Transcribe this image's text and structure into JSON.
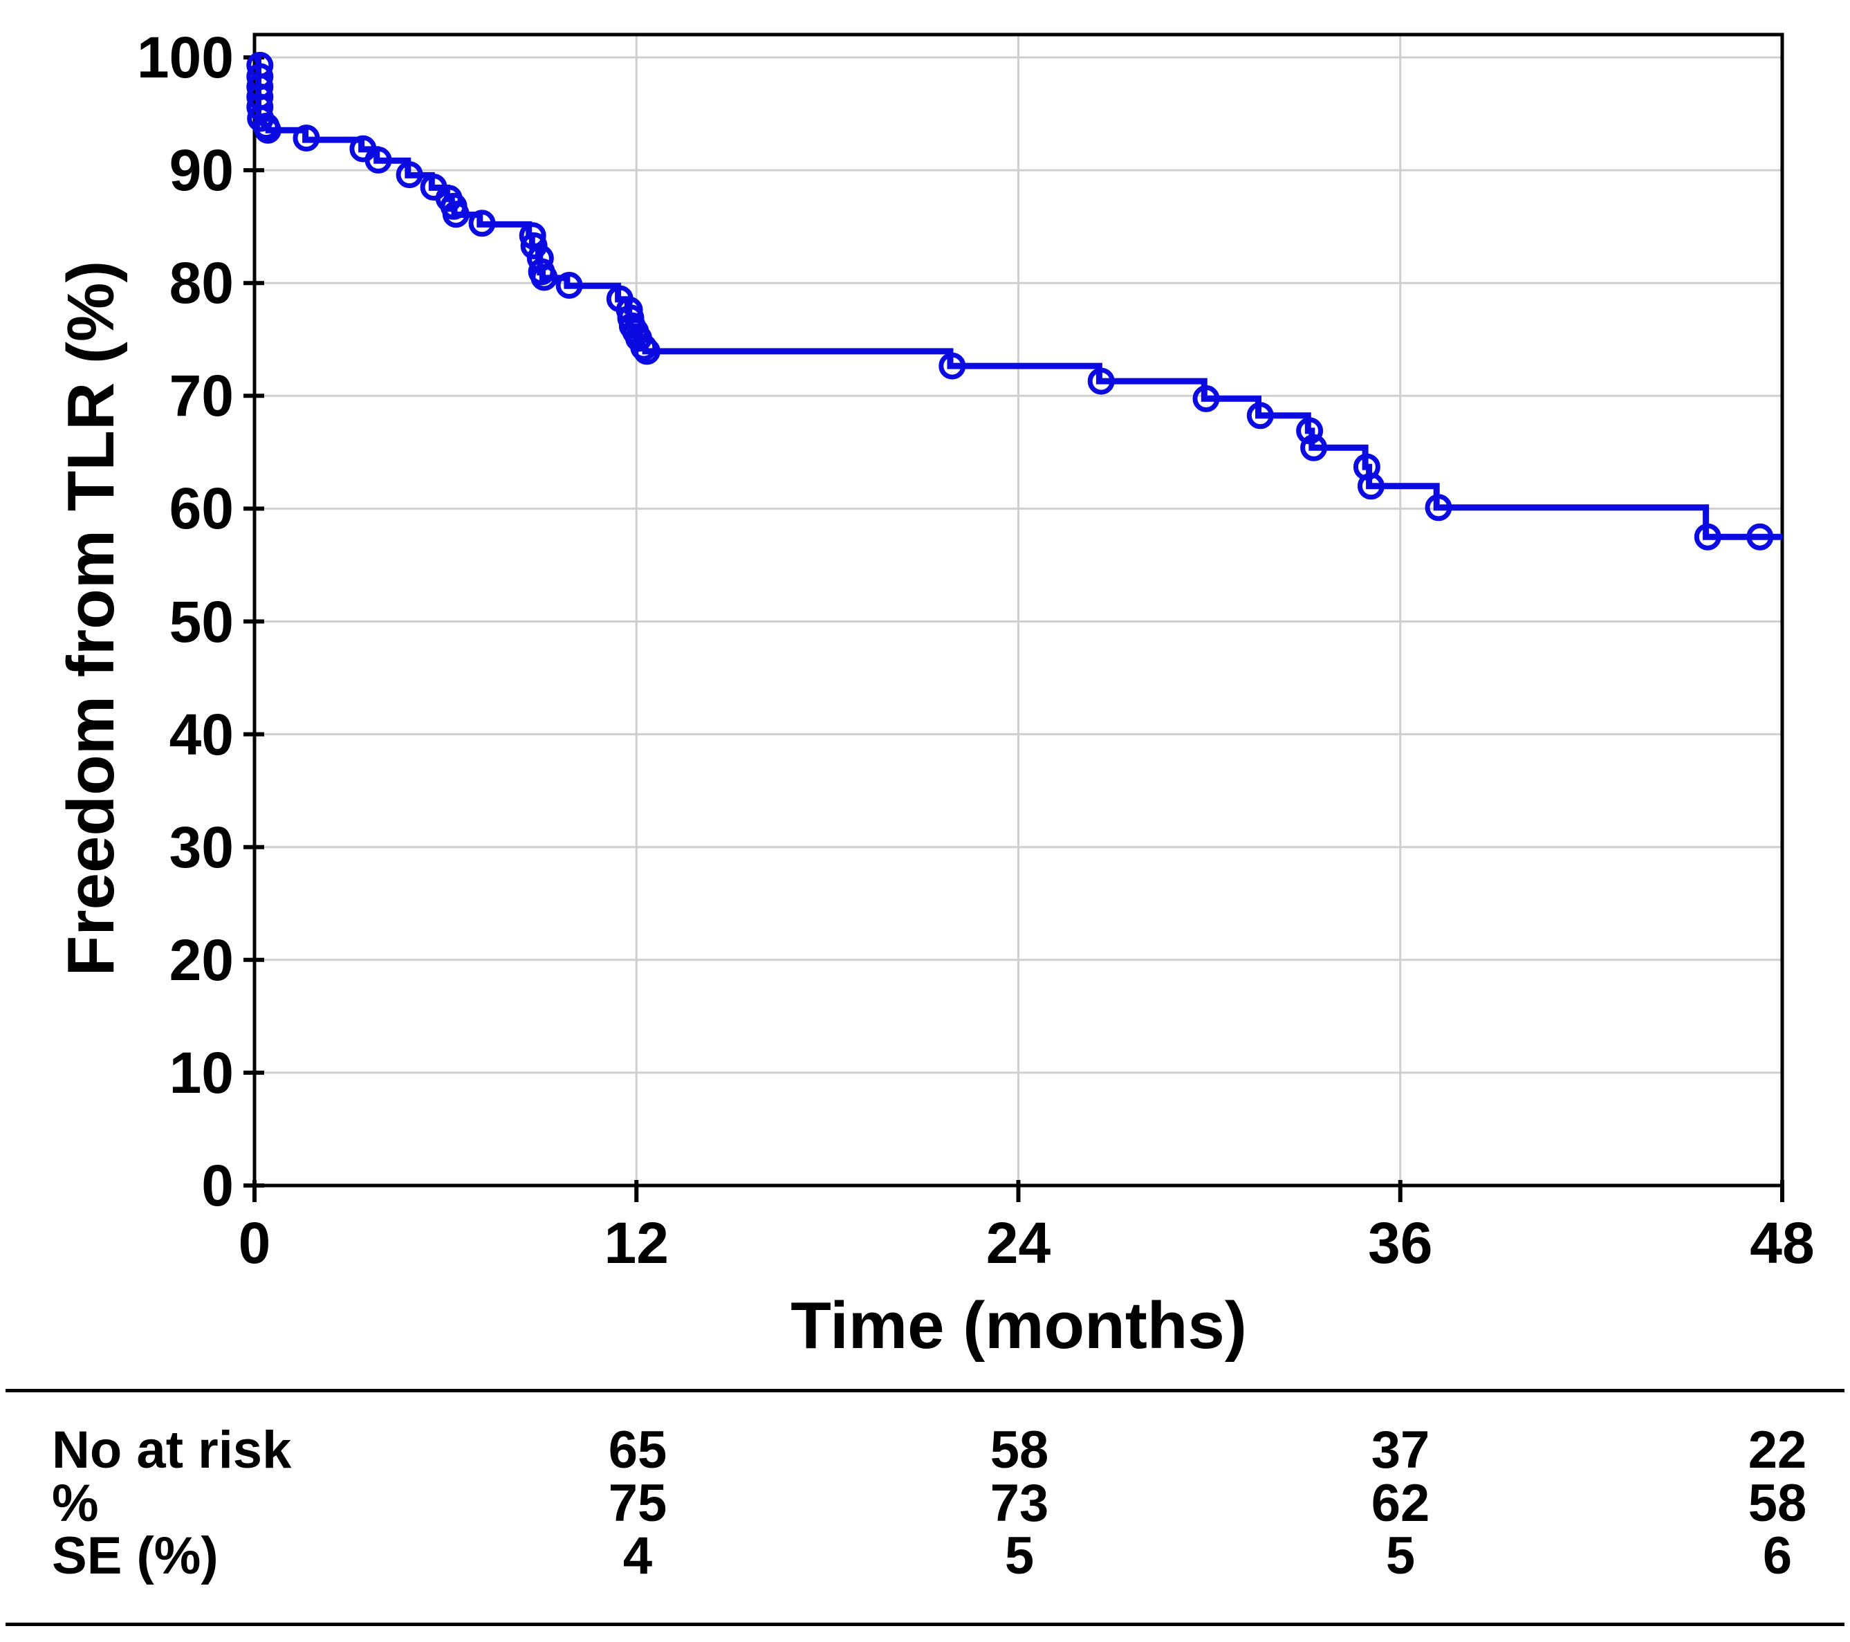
{
  "chart_data": {
    "type": "line",
    "subtype": "kaplan-meier-step",
    "title": "",
    "xlabel": "Time (months)",
    "ylabel": "Freedom from TLR (%)",
    "xlim": [
      0,
      48
    ],
    "ylim": [
      0,
      100
    ],
    "xticks": [
      0,
      12,
      24,
      36,
      48
    ],
    "yticks": [
      0,
      10,
      20,
      30,
      40,
      50,
      60,
      70,
      80,
      90,
      100
    ],
    "grid": true,
    "legend_position": "none",
    "line_color": "#0a0ae1",
    "grid_color": "#cfcfcf",
    "border_color": "#000000",
    "step_points": [
      [
        0,
        99.9
      ],
      [
        0.12,
        99.9
      ],
      [
        0.12,
        94.4
      ],
      [
        0.3,
        94.4
      ],
      [
        0.3,
        93.95
      ],
      [
        0.44,
        93.95
      ],
      [
        0.44,
        93.55
      ],
      [
        1.6,
        93.55
      ],
      [
        1.6,
        92.7
      ],
      [
        3.36,
        92.7
      ],
      [
        3.36,
        91.85
      ],
      [
        3.84,
        91.85
      ],
      [
        3.84,
        90.85
      ],
      [
        4.82,
        90.85
      ],
      [
        4.82,
        89.55
      ],
      [
        5.57,
        89.55
      ],
      [
        5.57,
        88.45
      ],
      [
        6.05,
        88.45
      ],
      [
        6.05,
        87.45
      ],
      [
        6.2,
        87.45
      ],
      [
        6.2,
        86.75
      ],
      [
        6.28,
        86.75
      ],
      [
        6.28,
        86.05
      ],
      [
        7.08,
        86.05
      ],
      [
        7.08,
        85.2
      ],
      [
        8.62,
        85.2
      ],
      [
        8.62,
        84.15
      ],
      [
        8.72,
        84.15
      ],
      [
        8.72,
        83.25
      ],
      [
        8.92,
        83.25
      ],
      [
        8.92,
        82.15
      ],
      [
        8.97,
        82.15
      ],
      [
        8.97,
        80.95
      ],
      [
        9.05,
        80.95
      ],
      [
        9.05,
        80.45
      ],
      [
        9.82,
        80.45
      ],
      [
        9.82,
        79.75
      ],
      [
        11.42,
        79.75
      ],
      [
        11.42,
        78.55
      ],
      [
        11.72,
        78.55
      ],
      [
        11.72,
        77.55
      ],
      [
        11.77,
        77.55
      ],
      [
        11.77,
        76.85
      ],
      [
        11.82,
        76.85
      ],
      [
        11.82,
        76.15
      ],
      [
        11.92,
        76.15
      ],
      [
        11.92,
        75.65
      ],
      [
        12.02,
        75.65
      ],
      [
        12.02,
        75.05
      ],
      [
        12.18,
        75.05
      ],
      [
        12.18,
        74.25
      ],
      [
        12.28,
        74.25
      ],
      [
        12.28,
        73.95
      ],
      [
        21.86,
        73.95
      ],
      [
        21.86,
        72.65
      ],
      [
        26.54,
        72.65
      ],
      [
        26.54,
        71.3
      ],
      [
        29.84,
        71.3
      ],
      [
        29.84,
        69.75
      ],
      [
        31.54,
        69.75
      ],
      [
        31.54,
        68.25
      ],
      [
        33.1,
        68.25
      ],
      [
        33.1,
        66.9
      ],
      [
        33.22,
        66.9
      ],
      [
        33.22,
        65.4
      ],
      [
        34.9,
        65.4
      ],
      [
        34.9,
        63.7
      ],
      [
        35.02,
        63.7
      ],
      [
        35.02,
        62.0
      ],
      [
        37.14,
        62.0
      ],
      [
        37.14,
        60.1
      ],
      [
        45.6,
        60.1
      ],
      [
        45.6,
        57.5
      ],
      [
        48,
        57.5
      ]
    ],
    "censor_marks": [
      [
        0.17,
        99.3
      ],
      [
        0.17,
        98.3
      ],
      [
        0.17,
        97.4
      ],
      [
        0.17,
        96.5
      ],
      [
        0.17,
        95.6
      ],
      [
        0.19,
        94.6
      ],
      [
        0.37,
        93.9
      ],
      [
        0.42,
        93.55
      ],
      [
        1.63,
        92.85
      ],
      [
        3.41,
        91.9
      ],
      [
        3.89,
        90.9
      ],
      [
        4.87,
        89.6
      ],
      [
        5.63,
        88.5
      ],
      [
        6.11,
        87.5
      ],
      [
        6.26,
        86.8
      ],
      [
        6.33,
        86.1
      ],
      [
        7.15,
        85.3
      ],
      [
        8.74,
        84.2
      ],
      [
        8.78,
        83.3
      ],
      [
        8.98,
        82.2
      ],
      [
        9.02,
        81.0
      ],
      [
        9.1,
        80.5
      ],
      [
        9.89,
        79.8
      ],
      [
        11.48,
        78.6
      ],
      [
        11.78,
        77.6
      ],
      [
        11.82,
        76.9
      ],
      [
        11.87,
        76.2
      ],
      [
        11.97,
        75.7
      ],
      [
        12.07,
        75.1
      ],
      [
        12.23,
        74.3
      ],
      [
        12.33,
        73.95
      ],
      [
        21.92,
        72.65
      ],
      [
        26.6,
        71.3
      ],
      [
        29.9,
        69.75
      ],
      [
        31.6,
        68.25
      ],
      [
        33.15,
        66.9
      ],
      [
        33.28,
        65.4
      ],
      [
        34.95,
        63.7
      ],
      [
        35.08,
        62.0
      ],
      [
        37.2,
        60.1
      ],
      [
        45.66,
        57.5
      ],
      [
        47.3,
        57.5
      ]
    ]
  },
  "chart": {
    "xlabel": "Time (months)",
    "ylabel": "Freedom from TLR (%)"
  },
  "risk_table": {
    "columns_months": [
      12,
      24,
      36,
      48
    ],
    "rows": [
      {
        "label": "No at risk",
        "values": [
          "65",
          "58",
          "37",
          "22"
        ]
      },
      {
        "label": "%",
        "values": [
          "75",
          "73",
          "62",
          "58"
        ]
      },
      {
        "label": "SE (%)",
        "values": [
          "4",
          "5",
          "5",
          "6"
        ]
      }
    ]
  }
}
